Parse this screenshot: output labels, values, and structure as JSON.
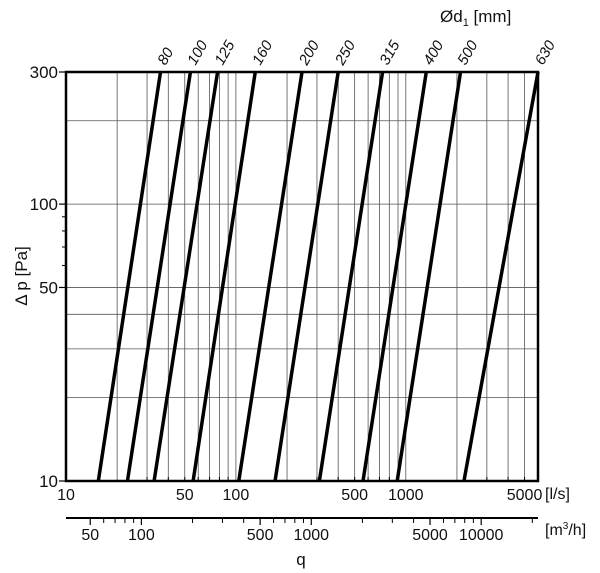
{
  "chart_data": {
    "type": "line",
    "title": "",
    "ylabel": "Δ p [Pa]",
    "xlabel": "q",
    "x_unit_primary": "[l/s]",
    "x_unit_secondary": "[m3/h]",
    "diameter_label": "Ød1 [mm]",
    "y_scale": "log",
    "x_scale": "log",
    "ylim": [
      10,
      300
    ],
    "xlim": [
      10,
      6000
    ],
    "y_ticks": [
      10,
      50,
      100,
      300
    ],
    "x_ticks_primary": [
      10,
      50,
      100,
      500,
      1000,
      5000
    ],
    "x_ticks_secondary": [
      50,
      100,
      500,
      1000,
      5000,
      10000
    ],
    "grid": true,
    "series": [
      {
        "name": "80",
        "x": [
          15.5,
          36
        ],
        "y": [
          10,
          300
        ]
      },
      {
        "name": "100",
        "x": [
          23,
          54
        ],
        "y": [
          10,
          300
        ]
      },
      {
        "name": "125",
        "x": [
          33,
          78
        ],
        "y": [
          10,
          300
        ]
      },
      {
        "name": "160",
        "x": [
          56,
          130
        ],
        "y": [
          10,
          300
        ]
      },
      {
        "name": "200",
        "x": [
          104,
          245
        ],
        "y": [
          10,
          300
        ]
      },
      {
        "name": "250",
        "x": [
          170,
          400
        ],
        "y": [
          10,
          300
        ]
      },
      {
        "name": "315",
        "x": [
          310,
          730
        ],
        "y": [
          10,
          300
        ]
      },
      {
        "name": "400",
        "x": [
          560,
          1320
        ],
        "y": [
          10,
          300
        ]
      },
      {
        "name": "500",
        "x": [
          890,
          2100
        ],
        "y": [
          10,
          300
        ]
      },
      {
        "name": "630",
        "x": [
          2200,
          6000
        ],
        "y": [
          10,
          300
        ]
      }
    ]
  },
  "labels": {
    "ylabel": "Δ p [Pa]",
    "xlabel": "q",
    "unit_ls": "[l/s]",
    "unit_m3h_pre": "[m",
    "unit_m3h_sup": "3",
    "unit_m3h_post": "/h]",
    "diam_pre": "Ød",
    "diam_sub": "1",
    "diam_post": " [mm]"
  }
}
